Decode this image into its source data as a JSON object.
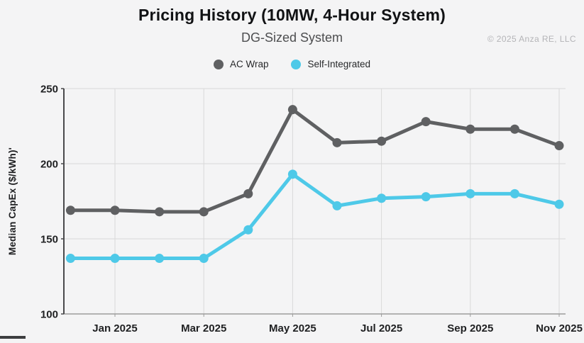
{
  "header": {
    "title": "Pricing History (10MW, 4-Hour System)",
    "subtitle": "DG-Sized System",
    "copyright": "© 2025 Anza RE, LLC"
  },
  "legend": {
    "items": [
      {
        "label": "AC Wrap",
        "color": "#5f6062"
      },
      {
        "label": "Self-Integrated",
        "color": "#4ec9e8"
      }
    ]
  },
  "chart_data": {
    "type": "line",
    "title": "Pricing History (10MW, 4-Hour System)",
    "subtitle": "DG-Sized System",
    "x": [
      "Dec 2024",
      "Jan 2025",
      "Feb 2025",
      "Mar 2025",
      "Apr 2025",
      "May 2025",
      "Jun 2025",
      "Jul 2025",
      "Aug 2025",
      "Sep 2025",
      "Oct 2025",
      "Nov 2025"
    ],
    "series": [
      {
        "id": "ac-wrap",
        "name": "AC Wrap",
        "color": "#5f6062",
        "values": [
          169,
          169,
          168,
          168,
          180,
          236,
          214,
          215,
          228,
          223,
          223,
          212
        ]
      },
      {
        "id": "self-integrated",
        "name": "Self-Integrated",
        "color": "#4ec9e8",
        "values": [
          137,
          137,
          137,
          137,
          156,
          193,
          172,
          177,
          178,
          180,
          180,
          173
        ]
      }
    ],
    "xlabel": "",
    "ylabel": "Median CapEx ($/kWh)'",
    "ylim": [
      100,
      250
    ],
    "yticks": [
      100,
      150,
      200,
      250
    ],
    "xticks_shown": [
      "Jan 2025",
      "Mar 2025",
      "May 2025",
      "Jul 2025",
      "Sep 2025",
      "Nov 2025"
    ],
    "grid": true,
    "legend_position": "top",
    "colors": {
      "grid": "#d9d9d9",
      "axis_x": "#9b9b9b",
      "axis_y": "#4a4a4c",
      "tick_label": "#1f2022",
      "background": "#f4f4f5"
    }
  }
}
